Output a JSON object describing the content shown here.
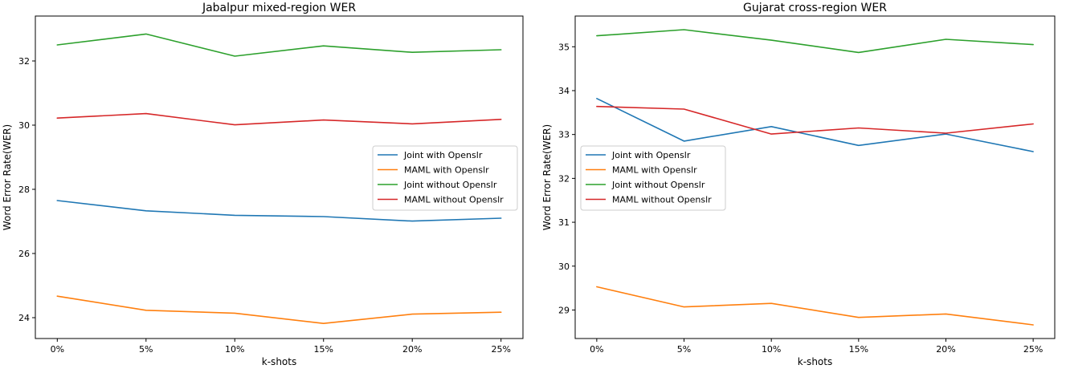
{
  "chart_data": [
    {
      "type": "line",
      "title": "Jabalpur mixed-region WER",
      "xlabel": "k-shots",
      "ylabel": "Word Error Rate(WER)",
      "categories": [
        "0%",
        "5%",
        "10%",
        "15%",
        "20%",
        "25%"
      ],
      "ylim": [
        23.35,
        33.4
      ],
      "yticks": [
        24,
        26,
        28,
        30,
        32
      ],
      "grid": false,
      "legend_position": "center-right",
      "series": [
        {
          "name": "Joint with Openslr",
          "color": "#1f77b4",
          "values": [
            27.65,
            27.33,
            27.19,
            27.15,
            27.01,
            27.1
          ]
        },
        {
          "name": "MAML with Openslr",
          "color": "#ff7f0e",
          "values": [
            24.67,
            24.23,
            24.14,
            23.82,
            24.11,
            24.17
          ]
        },
        {
          "name": "Joint without Openslr",
          "color": "#2ca02c",
          "values": [
            32.5,
            32.84,
            32.15,
            32.47,
            32.27,
            32.35
          ]
        },
        {
          "name": "MAML without Openslr",
          "color": "#d62728",
          "values": [
            30.22,
            30.36,
            30.01,
            30.16,
            30.04,
            30.18
          ]
        }
      ]
    },
    {
      "type": "line",
      "title": "Gujarat cross-region WER",
      "xlabel": "k-shots",
      "ylabel": "Word Error Rate(WER)",
      "categories": [
        "0%",
        "5%",
        "10%",
        "15%",
        "20%",
        "25%"
      ],
      "ylim": [
        28.35,
        35.7
      ],
      "yticks": [
        29,
        30,
        31,
        32,
        33,
        34,
        35
      ],
      "grid": false,
      "legend_position": "center-left",
      "series": [
        {
          "name": "Joint with Openslr",
          "color": "#1f77b4",
          "values": [
            33.82,
            32.85,
            33.18,
            32.75,
            33.01,
            32.61
          ]
        },
        {
          "name": "MAML with Openslr",
          "color": "#ff7f0e",
          "values": [
            29.53,
            29.07,
            29.15,
            28.83,
            28.91,
            28.66
          ]
        },
        {
          "name": "Joint without Openslr",
          "color": "#2ca02c",
          "values": [
            35.25,
            35.39,
            35.15,
            34.87,
            35.17,
            35.05
          ]
        },
        {
          "name": "MAML without Openslr",
          "color": "#d62728",
          "values": [
            33.64,
            33.58,
            33.01,
            33.15,
            33.03,
            33.24
          ]
        }
      ]
    }
  ]
}
